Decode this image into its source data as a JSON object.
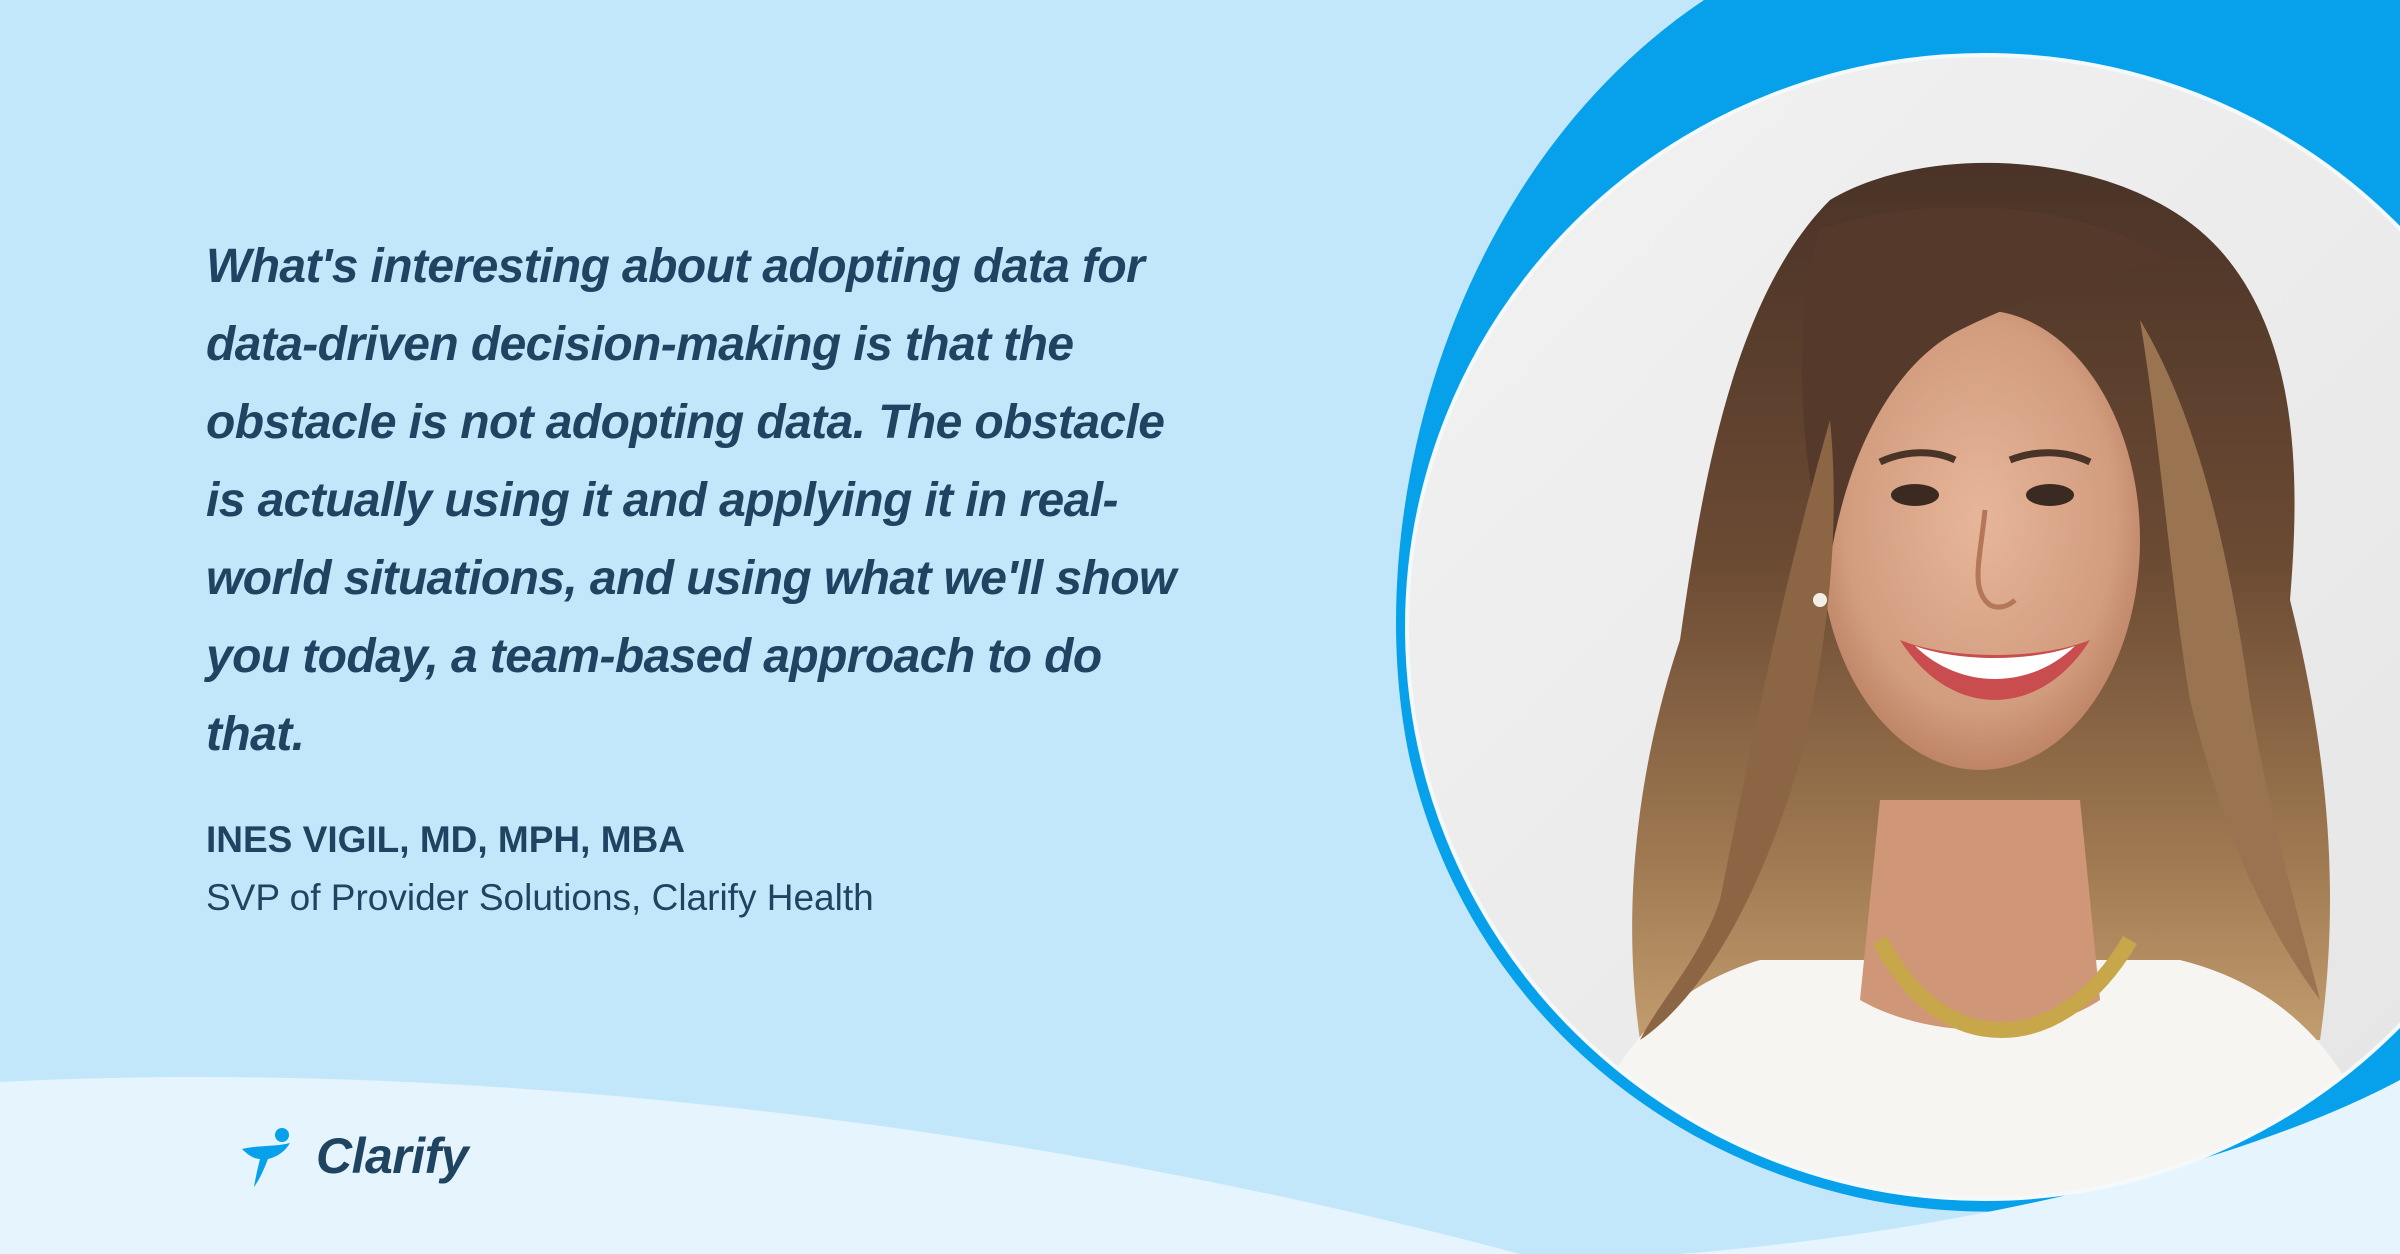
{
  "quote": {
    "lines": [
      "What's interesting about adopting data for",
      "data-driven decision-making is that the",
      "obstacle is not adopting data. The obstacle",
      "is actually using it and applying it in real-",
      "world situations, and using what we'll show",
      "you today, a team-based approach to do",
      "that."
    ]
  },
  "attribution": {
    "name": "INES VIGIL, MD, MPH, MBA",
    "role": "SVP of Provider Solutions, Clarify Health"
  },
  "brand": {
    "name": "Clarify",
    "logo_icon": "clarify-figure-icon"
  },
  "colors": {
    "background": "#c3e7fa",
    "accent": "#07a0ea",
    "text": "#1f4461",
    "light_wave": "#e6f5fd"
  },
  "portrait": {
    "icon": "portrait-photo"
  }
}
